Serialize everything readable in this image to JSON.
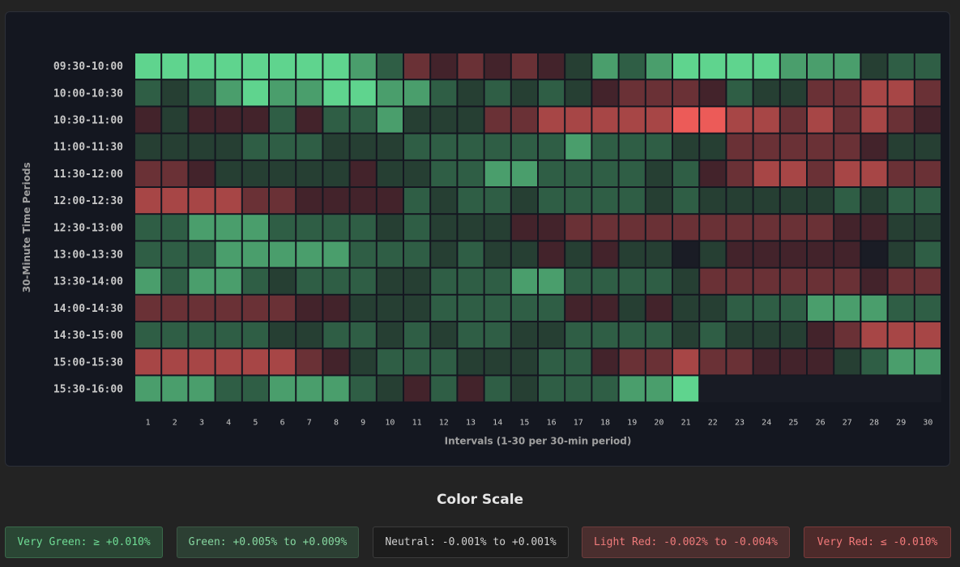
{
  "chart_data": {
    "type": "heatmap",
    "title": "",
    "xlabel": "Intervals (1-30 per 30-min period)",
    "ylabel": "30-Minute Time Periods",
    "x": [
      1,
      2,
      3,
      4,
      5,
      6,
      7,
      8,
      9,
      10,
      11,
      12,
      13,
      14,
      15,
      16,
      17,
      18,
      19,
      20,
      21,
      22,
      23,
      24,
      25,
      26,
      27,
      28,
      29,
      30
    ],
    "y": [
      "09:30-10:00",
      "10:00-10:30",
      "10:30-11:00",
      "11:00-11:30",
      "11:30-12:00",
      "12:00-12:30",
      "12:30-13:00",
      "13:00-13:30",
      "13:30-14:00",
      "14:00-14:30",
      "14:30-15:00",
      "15:00-15:30",
      "15:30-16:00"
    ],
    "unit": "%",
    "values": [
      [
        0.01,
        0.01,
        0.01,
        0.01,
        0.011,
        0.01,
        0.01,
        0.01,
        0.007,
        0.003,
        -0.006,
        -0.003,
        -0.006,
        -0.003,
        -0.006,
        -0.003,
        0.001,
        0.007,
        0.003,
        0.007,
        0.01,
        0.01,
        0.01,
        0.011,
        0.007,
        0.007,
        0.007,
        0.001,
        0.003,
        0.003
      ],
      [
        0.003,
        0.001,
        0.003,
        0.007,
        0.011,
        0.007,
        0.007,
        0.011,
        0.011,
        0.007,
        0.007,
        0.003,
        0.001,
        0.003,
        0.001,
        0.003,
        0.001,
        -0.003,
        -0.006,
        -0.006,
        -0.006,
        -0.003,
        0.003,
        0.001,
        0.001,
        -0.006,
        -0.006,
        -0.009,
        -0.009,
        -0.006
      ],
      [
        -0.003,
        0.001,
        -0.003,
        -0.003,
        -0.003,
        0.003,
        -0.003,
        0.003,
        0.003,
        0.008,
        0.001,
        0.001,
        0.001,
        -0.006,
        -0.006,
        -0.009,
        -0.009,
        -0.009,
        -0.009,
        -0.009,
        -0.013,
        -0.013,
        -0.009,
        -0.009,
        -0.006,
        -0.009,
        -0.006,
        -0.009,
        -0.006,
        -0.003
      ],
      [
        0.001,
        0.001,
        0.001,
        0.001,
        0.003,
        0.003,
        0.003,
        0.001,
        0.001,
        0.001,
        0.003,
        0.003,
        0.003,
        0.003,
        0.003,
        0.003,
        0.008,
        0.003,
        0.003,
        0.003,
        0.001,
        0.001,
        -0.006,
        -0.006,
        -0.006,
        -0.006,
        -0.006,
        -0.003,
        0.001,
        0.001
      ],
      [
        -0.006,
        -0.006,
        -0.003,
        0.001,
        0.001,
        0.001,
        0.001,
        0.001,
        -0.003,
        0.001,
        0.001,
        0.003,
        0.003,
        0.008,
        0.008,
        0.003,
        0.003,
        0.003,
        0.003,
        0.001,
        0.003,
        -0.003,
        -0.006,
        -0.009,
        -0.009,
        -0.006,
        -0.009,
        -0.009,
        -0.006,
        -0.006
      ],
      [
        -0.009,
        -0.009,
        -0.009,
        -0.009,
        -0.006,
        -0.006,
        -0.003,
        -0.003,
        -0.003,
        -0.003,
        0.003,
        0.001,
        0.003,
        0.003,
        0.001,
        0.003,
        0.003,
        0.003,
        0.003,
        0.001,
        0.003,
        0.001,
        0.001,
        0.001,
        0.001,
        0.001,
        0.003,
        0.001,
        0.003,
        0.003
      ],
      [
        0.003,
        0.003,
        0.008,
        0.008,
        0.008,
        0.003,
        0.003,
        0.003,
        0.003,
        0.001,
        0.003,
        0.001,
        0.001,
        0.001,
        -0.003,
        -0.003,
        -0.006,
        -0.006,
        -0.006,
        -0.006,
        -0.006,
        -0.006,
        -0.006,
        -0.006,
        -0.006,
        -0.006,
        -0.003,
        -0.003,
        0.001,
        0.001
      ],
      [
        0.003,
        0.003,
        0.003,
        0.008,
        0.008,
        0.008,
        0.008,
        0.008,
        0.003,
        0.003,
        0.003,
        0.001,
        0.003,
        0.001,
        0.001,
        -0.003,
        0.001,
        -0.003,
        0.001,
        0.001,
        0.0,
        0.001,
        -0.003,
        -0.003,
        -0.003,
        -0.003,
        -0.003,
        0.0,
        0.001,
        0.003
      ],
      [
        0.008,
        0.003,
        0.008,
        0.008,
        0.003,
        0.001,
        0.003,
        0.003,
        0.003,
        0.001,
        0.001,
        0.003,
        0.003,
        0.003,
        0.008,
        0.008,
        0.003,
        0.003,
        0.003,
        0.003,
        0.001,
        -0.006,
        -0.006,
        -0.006,
        -0.006,
        -0.006,
        -0.006,
        -0.003,
        -0.006,
        -0.006
      ],
      [
        -0.006,
        -0.006,
        -0.006,
        -0.006,
        -0.006,
        -0.006,
        -0.003,
        -0.003,
        0.001,
        0.001,
        0.001,
        0.003,
        0.003,
        0.003,
        0.003,
        0.003,
        -0.003,
        -0.003,
        0.001,
        -0.003,
        0.001,
        0.001,
        0.003,
        0.003,
        0.003,
        0.008,
        0.008,
        0.008,
        0.003,
        0.003
      ],
      [
        0.003,
        0.003,
        0.003,
        0.003,
        0.003,
        0.001,
        0.001,
        0.003,
        0.003,
        0.001,
        0.003,
        0.001,
        0.003,
        0.003,
        0.001,
        0.001,
        0.003,
        0.003,
        0.003,
        0.003,
        0.001,
        0.003,
        0.001,
        0.001,
        0.001,
        -0.003,
        -0.006,
        -0.009,
        -0.009,
        -0.009
      ],
      [
        -0.009,
        -0.009,
        -0.009,
        -0.009,
        -0.009,
        -0.009,
        -0.006,
        -0.003,
        0.001,
        0.003,
        0.003,
        0.003,
        0.001,
        0.001,
        0.001,
        0.003,
        0.003,
        -0.003,
        -0.006,
        -0.006,
        -0.009,
        -0.006,
        -0.006,
        -0.003,
        -0.003,
        -0.003,
        0.001,
        0.003,
        0.008,
        0.008
      ],
      [
        0.008,
        0.008,
        0.008,
        0.003,
        0.003,
        0.008,
        0.008,
        0.008,
        0.003,
        0.001,
        -0.003,
        0.003,
        -0.003,
        0.003,
        0.001,
        0.003,
        0.003,
        0.003,
        0.008,
        0.008,
        0.01,
        null,
        null,
        null,
        null,
        null,
        null,
        null,
        null,
        null
      ]
    ]
  },
  "legend": {
    "title": "Color Scale",
    "items": {
      "very_green": "Very Green: ≥ +0.010%",
      "green": "Green: +0.005% to +0.009%",
      "neutral": "Neutral: -0.001% to +0.001%",
      "light_red": "Light Red: -0.002% to -0.004%",
      "very_red": "Very Red: ≤ -0.010%"
    }
  },
  "colors": {
    "panel_bg": "#141720",
    "page_bg": "#232323",
    "empty_cell": "#181b24",
    "tick_text": "#c8c8c8",
    "axis_label": "#a0a0a0"
  }
}
